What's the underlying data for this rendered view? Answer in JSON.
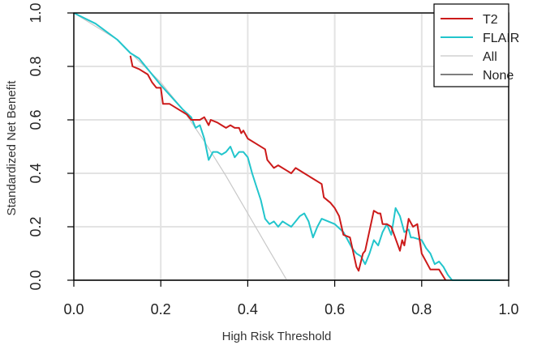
{
  "chart_data": {
    "type": "line",
    "xlabel": "High Risk Threshold",
    "ylabel": "Standardized Net Benefit",
    "xlim": [
      0,
      1
    ],
    "ylim": [
      0,
      1
    ],
    "x_ticks": [
      "0.0",
      "0.2",
      "0.4",
      "0.6",
      "0.8",
      "1.0"
    ],
    "y_ticks": [
      "0.0",
      "0.2",
      "0.4",
      "0.6",
      "0.8",
      "1.0"
    ],
    "grid": true,
    "legend_position": "top-right",
    "series": [
      {
        "name": "T2",
        "color": "#cc1a1a",
        "points": [
          [
            0.13,
            0.84
          ],
          [
            0.135,
            0.8
          ],
          [
            0.15,
            0.79
          ],
          [
            0.17,
            0.77
          ],
          [
            0.18,
            0.74
          ],
          [
            0.19,
            0.72
          ],
          [
            0.2,
            0.72
          ],
          [
            0.205,
            0.66
          ],
          [
            0.22,
            0.66
          ],
          [
            0.24,
            0.64
          ],
          [
            0.26,
            0.62
          ],
          [
            0.27,
            0.6
          ],
          [
            0.29,
            0.6
          ],
          [
            0.3,
            0.61
          ],
          [
            0.31,
            0.58
          ],
          [
            0.315,
            0.6
          ],
          [
            0.33,
            0.59
          ],
          [
            0.34,
            0.58
          ],
          [
            0.35,
            0.57
          ],
          [
            0.36,
            0.58
          ],
          [
            0.37,
            0.57
          ],
          [
            0.38,
            0.57
          ],
          [
            0.385,
            0.55
          ],
          [
            0.39,
            0.56
          ],
          [
            0.4,
            0.53
          ],
          [
            0.42,
            0.51
          ],
          [
            0.44,
            0.49
          ],
          [
            0.445,
            0.45
          ],
          [
            0.46,
            0.42
          ],
          [
            0.47,
            0.43
          ],
          [
            0.49,
            0.41
          ],
          [
            0.5,
            0.4
          ],
          [
            0.51,
            0.42
          ],
          [
            0.53,
            0.4
          ],
          [
            0.55,
            0.38
          ],
          [
            0.57,
            0.36
          ],
          [
            0.575,
            0.31
          ],
          [
            0.59,
            0.29
          ],
          [
            0.6,
            0.27
          ],
          [
            0.61,
            0.24
          ],
          [
            0.62,
            0.17
          ],
          [
            0.635,
            0.16
          ],
          [
            0.65,
            0.05
          ],
          [
            0.655,
            0.035
          ],
          [
            0.665,
            0.1
          ],
          [
            0.67,
            0.11
          ],
          [
            0.69,
            0.26
          ],
          [
            0.7,
            0.25
          ],
          [
            0.705,
            0.25
          ],
          [
            0.71,
            0.21
          ],
          [
            0.72,
            0.21
          ],
          [
            0.73,
            0.2
          ],
          [
            0.75,
            0.11
          ],
          [
            0.755,
            0.15
          ],
          [
            0.76,
            0.13
          ],
          [
            0.77,
            0.23
          ],
          [
            0.78,
            0.2
          ],
          [
            0.79,
            0.21
          ],
          [
            0.8,
            0.1
          ],
          [
            0.82,
            0.04
          ],
          [
            0.84,
            0.04
          ],
          [
            0.855,
            0.0
          ]
        ]
      },
      {
        "name": "FLAIR",
        "color": "#22c5cc",
        "points": [
          [
            0.0,
            1.0
          ],
          [
            0.05,
            0.96
          ],
          [
            0.1,
            0.9
          ],
          [
            0.13,
            0.85
          ],
          [
            0.15,
            0.83
          ],
          [
            0.2,
            0.73
          ],
          [
            0.25,
            0.64
          ],
          [
            0.27,
            0.61
          ],
          [
            0.28,
            0.57
          ],
          [
            0.29,
            0.58
          ],
          [
            0.3,
            0.53
          ],
          [
            0.31,
            0.45
          ],
          [
            0.32,
            0.48
          ],
          [
            0.33,
            0.48
          ],
          [
            0.34,
            0.47
          ],
          [
            0.35,
            0.48
          ],
          [
            0.36,
            0.5
          ],
          [
            0.37,
            0.46
          ],
          [
            0.38,
            0.48
          ],
          [
            0.39,
            0.48
          ],
          [
            0.4,
            0.46
          ],
          [
            0.41,
            0.4
          ],
          [
            0.42,
            0.35
          ],
          [
            0.43,
            0.3
          ],
          [
            0.44,
            0.23
          ],
          [
            0.45,
            0.21
          ],
          [
            0.46,
            0.22
          ],
          [
            0.47,
            0.2
          ],
          [
            0.48,
            0.22
          ],
          [
            0.49,
            0.21
          ],
          [
            0.5,
            0.2
          ],
          [
            0.51,
            0.22
          ],
          [
            0.52,
            0.24
          ],
          [
            0.53,
            0.25
          ],
          [
            0.54,
            0.22
          ],
          [
            0.55,
            0.16
          ],
          [
            0.56,
            0.2
          ],
          [
            0.57,
            0.23
          ],
          [
            0.6,
            0.21
          ],
          [
            0.62,
            0.18
          ],
          [
            0.63,
            0.15
          ],
          [
            0.64,
            0.12
          ],
          [
            0.65,
            0.1
          ],
          [
            0.66,
            0.09
          ],
          [
            0.67,
            0.06
          ],
          [
            0.68,
            0.1
          ],
          [
            0.69,
            0.15
          ],
          [
            0.7,
            0.13
          ],
          [
            0.71,
            0.18
          ],
          [
            0.72,
            0.21
          ],
          [
            0.73,
            0.17
          ],
          [
            0.735,
            0.22
          ],
          [
            0.74,
            0.27
          ],
          [
            0.75,
            0.24
          ],
          [
            0.76,
            0.18
          ],
          [
            0.77,
            0.19
          ],
          [
            0.775,
            0.16
          ],
          [
            0.78,
            0.16
          ],
          [
            0.8,
            0.15
          ],
          [
            0.81,
            0.12
          ],
          [
            0.82,
            0.1
          ],
          [
            0.83,
            0.06
          ],
          [
            0.84,
            0.07
          ],
          [
            0.85,
            0.05
          ],
          [
            0.86,
            0.02
          ],
          [
            0.87,
            0.0
          ],
          [
            0.98,
            0.0
          ]
        ]
      },
      {
        "name": "All",
        "color": "#c8c8c8",
        "points": [
          [
            0.0,
            1.0
          ],
          [
            0.05,
            0.95
          ],
          [
            0.1,
            0.9
          ],
          [
            0.15,
            0.82
          ],
          [
            0.2,
            0.74
          ],
          [
            0.25,
            0.64
          ],
          [
            0.3,
            0.52
          ],
          [
            0.35,
            0.39
          ],
          [
            0.4,
            0.25
          ],
          [
            0.45,
            0.11
          ],
          [
            0.49,
            0.0
          ]
        ]
      },
      {
        "name": "None",
        "color": "#333333",
        "points": [
          [
            0.0,
            0.0
          ],
          [
            0.99,
            0.0
          ]
        ]
      }
    ]
  }
}
